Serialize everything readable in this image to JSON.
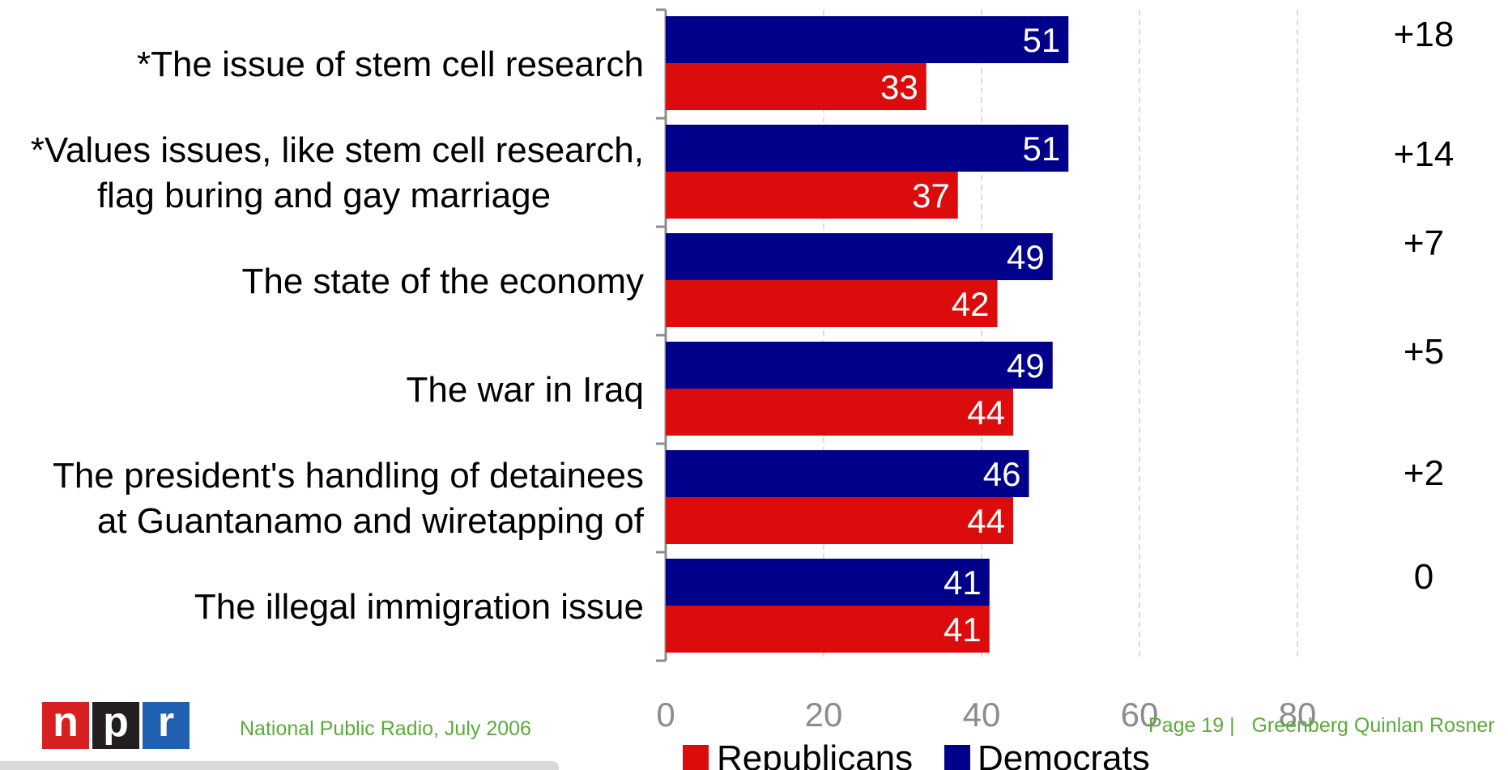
{
  "chart_data": {
    "type": "bar",
    "orientation": "horizontal",
    "categories": [
      [
        "*The issue of stem cell research"
      ],
      [
        "*Values issues, like stem cell research,",
        "flag buring and gay marriage"
      ],
      [
        "The state of the economy"
      ],
      [
        "The war in Iraq"
      ],
      [
        "The president's handling of detainees",
        "at Guantanamo and wiretapping of"
      ],
      [
        "The illegal immigration issue"
      ]
    ],
    "series": [
      {
        "name": "Democrats",
        "color": "#00008b",
        "values": [
          51,
          51,
          49,
          49,
          46,
          41
        ]
      },
      {
        "name": "Republicans",
        "color": "#dd0c0c",
        "values": [
          33,
          37,
          42,
          44,
          44,
          41
        ]
      }
    ],
    "differences": [
      "+18",
      "+14",
      "+7",
      "+5",
      "+2",
      "0"
    ],
    "xlim": [
      0,
      80
    ],
    "x_ticks": [
      "0",
      "20",
      "40",
      "60",
      "80"
    ],
    "grid": "vertical dashed",
    "legend": {
      "placement": "bottom",
      "items": [
        "Republicans",
        "Democrats"
      ]
    }
  },
  "footer": {
    "logo": "npr",
    "source": "National Public Radio, July 2006",
    "page": "Page 19 |",
    "firm": "Greenberg Quinlan Rosner"
  }
}
